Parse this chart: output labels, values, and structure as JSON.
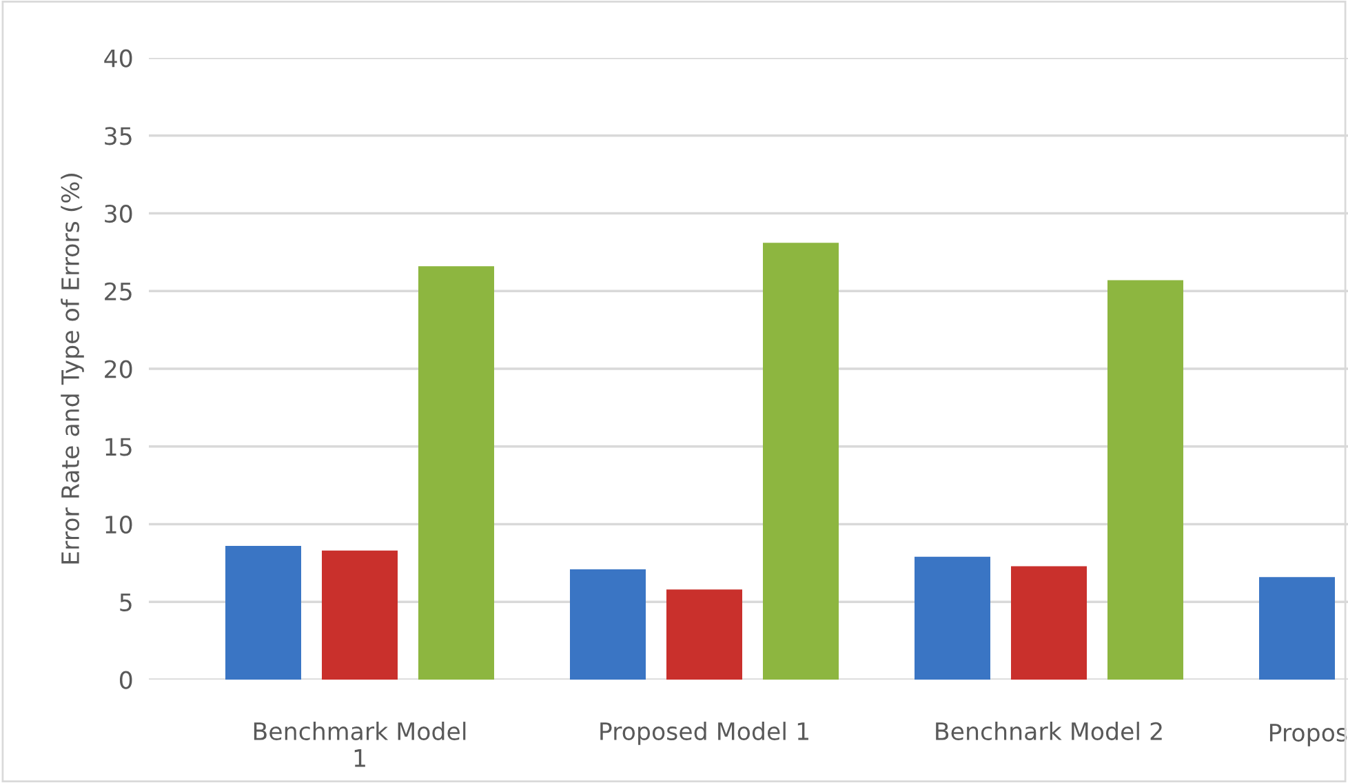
{
  "chart_data": {
    "type": "bar",
    "ylabel": "Error Rate and Type of Errors (%)",
    "categories": [
      "Benchmark Model\n1",
      "Proposed Model 1",
      "Benchnark Model 2",
      "Propos"
    ],
    "series": [
      {
        "color": "#3a75c4",
        "values": [
          8.6,
          7.1,
          7.9,
          6.6
        ]
      },
      {
        "color": "#c9302c",
        "values": [
          8.3,
          5.8,
          7.3,
          null
        ]
      },
      {
        "color": "#8db640",
        "values": [
          26.6,
          28.1,
          25.7,
          null
        ]
      }
    ],
    "ylim": [
      0,
      40
    ],
    "yticks": [
      0,
      5,
      10,
      15,
      20,
      25,
      30,
      35,
      40
    ],
    "grid": "y"
  }
}
